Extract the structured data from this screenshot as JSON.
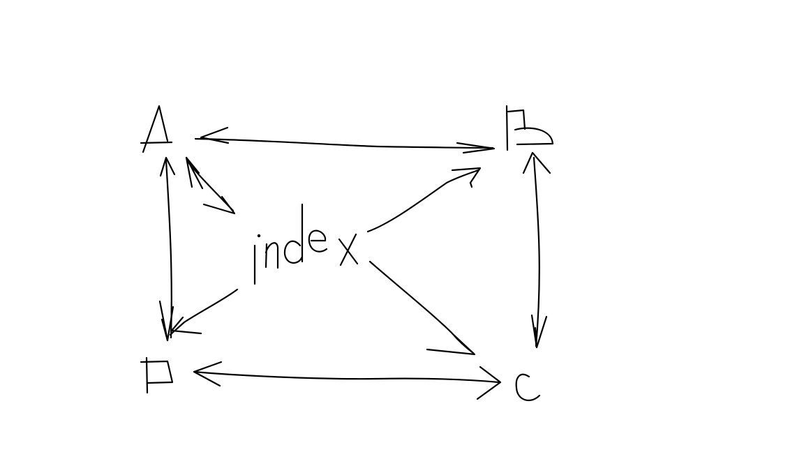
{
  "diagram": {
    "nodes": {
      "a": "A",
      "b": "B",
      "c": "C",
      "d": "D",
      "center": "index"
    },
    "edges": [
      {
        "from": "A",
        "to": "B",
        "direction": "both"
      },
      {
        "from": "D",
        "to": "C",
        "direction": "both"
      },
      {
        "from": "A",
        "to": "D",
        "direction": "both"
      },
      {
        "from": "B",
        "to": "C",
        "direction": "both"
      },
      {
        "from": "index",
        "to": "A",
        "direction": "both"
      },
      {
        "from": "index",
        "to": "B",
        "direction": "to"
      },
      {
        "from": "index",
        "to": "C",
        "direction": "to"
      },
      {
        "from": "index",
        "to": "D",
        "direction": "to"
      }
    ],
    "colors": {
      "background": "#ffffff",
      "ink": "#000000"
    }
  }
}
